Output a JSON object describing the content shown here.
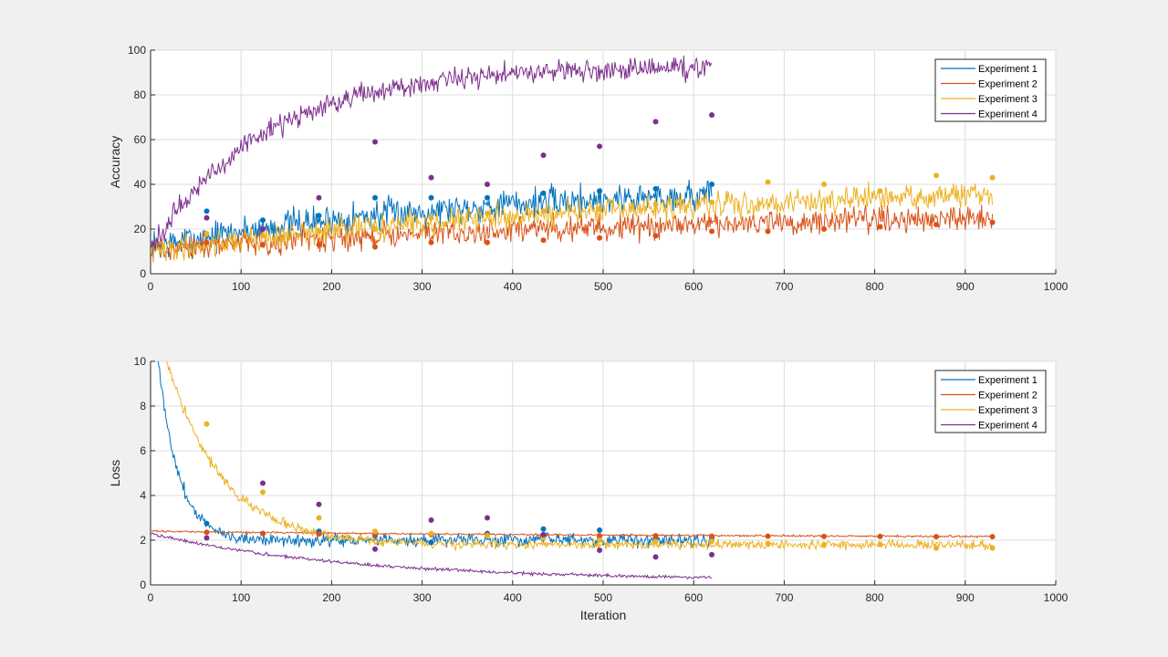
{
  "colors": {
    "exp1": "#0072BD",
    "exp2": "#D95319",
    "exp3": "#EDB120",
    "exp4": "#7E2F8E",
    "grid": "#dcdcdc",
    "axes": "#262626"
  },
  "chart_data": [
    {
      "type": "line",
      "title": "",
      "xlabel": "",
      "ylabel": "Accuracy",
      "xlim": [
        0,
        1000
      ],
      "ylim": [
        0,
        100
      ],
      "xticks": [
        "0",
        "100",
        "200",
        "300",
        "400",
        "500",
        "600",
        "700",
        "800",
        "900",
        "1000"
      ],
      "yticks": [
        "0",
        "20",
        "40",
        "60",
        "80",
        "100"
      ],
      "grid": true,
      "legend_position": "top-right",
      "series": [
        {
          "name": "Experiment 1",
          "color_key": "exp1",
          "max_iter": 620,
          "train_start": 12,
          "train_end": 40,
          "tau": 350,
          "noise": 5,
          "validation": {
            "x": [
              62,
              124,
              186,
              248,
              310,
              372,
              434,
              496,
              558,
              620
            ],
            "y": [
              28,
              24,
              26,
              34,
              34,
              34,
              36,
              37,
              38,
              40
            ]
          }
        },
        {
          "name": "Experiment 2",
          "color_key": "exp2",
          "max_iter": 930,
          "train_start": 11,
          "train_end": 30,
          "tau": 700,
          "noise": 4,
          "validation": {
            "x": [
              62,
              124,
              186,
              248,
              310,
              372,
              434,
              496,
              558,
              620,
              682,
              744,
              806,
              868,
              930
            ],
            "y": [
              14,
              13,
              13,
              12,
              14,
              14,
              15,
              16,
              17,
              19,
              19,
              20,
              21,
              22,
              23
            ]
          }
        },
        {
          "name": "Experiment 3",
          "color_key": "exp3",
          "max_iter": 930,
          "train_start": 10,
          "train_end": 42,
          "tau": 600,
          "noise": 4,
          "validation": {
            "x": [
              62,
              124,
              186,
              248,
              310,
              372,
              434,
              496,
              558,
              620,
              682,
              744,
              806,
              868,
              930
            ],
            "y": [
              18,
              17,
              19,
              20,
              25,
              27,
              28,
              29,
              31,
              32,
              41,
              40,
              37,
              44,
              43
            ]
          }
        },
        {
          "name": "Experiment 4",
          "color_key": "exp4",
          "max_iter": 620,
          "train_start": 12,
          "train_end": 93,
          "tau": 130,
          "noise": 3.5,
          "validation": {
            "x": [
              62,
              124,
              186,
              248,
              310,
              372,
              434,
              496,
              558,
              620
            ],
            "y": [
              25,
              20,
              34,
              59,
              43,
              40,
              53,
              57,
              68,
              71
            ]
          }
        }
      ]
    },
    {
      "type": "line",
      "title": "",
      "xlabel": "Iteration",
      "ylabel": "Loss",
      "xlim": [
        0,
        1000
      ],
      "ylim": [
        0,
        10
      ],
      "xticks": [
        "0",
        "100",
        "200",
        "300",
        "400",
        "500",
        "600",
        "700",
        "800",
        "900",
        "1000"
      ],
      "yticks": [
        "0",
        "2",
        "4",
        "6",
        "8",
        "10"
      ],
      "grid": true,
      "legend_position": "top-right",
      "series": [
        {
          "name": "Experiment 1",
          "color_key": "exp1",
          "max_iter": 620,
          "train_start": 14,
          "train_end": 2.0,
          "tau": 22,
          "noise": 0.2,
          "validation": {
            "x": [
              62,
              124,
              186,
              248,
              310,
              372,
              434,
              496,
              558,
              620
            ],
            "y": [
              2.75,
              2.3,
              2.4,
              2.2,
              1.9,
              2.3,
              2.5,
              2.45,
              2.1,
              2.1
            ]
          }
        },
        {
          "name": "Experiment 2",
          "color_key": "exp2",
          "max_iter": 930,
          "train_start": 2.4,
          "train_end": 2.1,
          "tau": 600,
          "noise": 0.03,
          "validation": {
            "x": [
              62,
              124,
              186,
              248,
              310,
              372,
              434,
              496,
              558,
              620,
              682,
              744,
              806,
              868,
              930
            ],
            "y": [
              2.35,
              2.3,
              2.28,
              2.25,
              2.25,
              2.25,
              2.22,
              2.2,
              2.2,
              2.18,
              2.18,
              2.17,
              2.17,
              2.16,
              2.16
            ]
          }
        },
        {
          "name": "Experiment 3",
          "color_key": "exp3",
          "max_iter": 930,
          "train_start": 13,
          "train_end": 1.8,
          "tau": 60,
          "noise": 0.15,
          "validation": {
            "x": [
              62,
              124,
              186,
              248,
              310,
              372,
              434,
              496,
              558,
              620,
              682,
              744,
              806,
              868,
              930
            ],
            "y": [
              7.2,
              4.15,
              3.0,
              2.4,
              2.3,
              2.2,
              2.1,
              2.0,
              1.95,
              1.95,
              1.85,
              1.8,
              1.8,
              1.65,
              1.65
            ]
          }
        },
        {
          "name": "Experiment 4",
          "color_key": "exp4",
          "max_iter": 620,
          "train_start": 2.3,
          "train_end": 0.2,
          "tau": 220,
          "noise": 0.05,
          "validation": {
            "x": [
              62,
              124,
              186,
              248,
              310,
              372,
              434,
              496,
              558,
              620
            ],
            "y": [
              2.1,
              4.55,
              3.6,
              1.6,
              2.9,
              3.0,
              2.25,
              1.55,
              1.25,
              1.35
            ]
          }
        }
      ]
    }
  ]
}
